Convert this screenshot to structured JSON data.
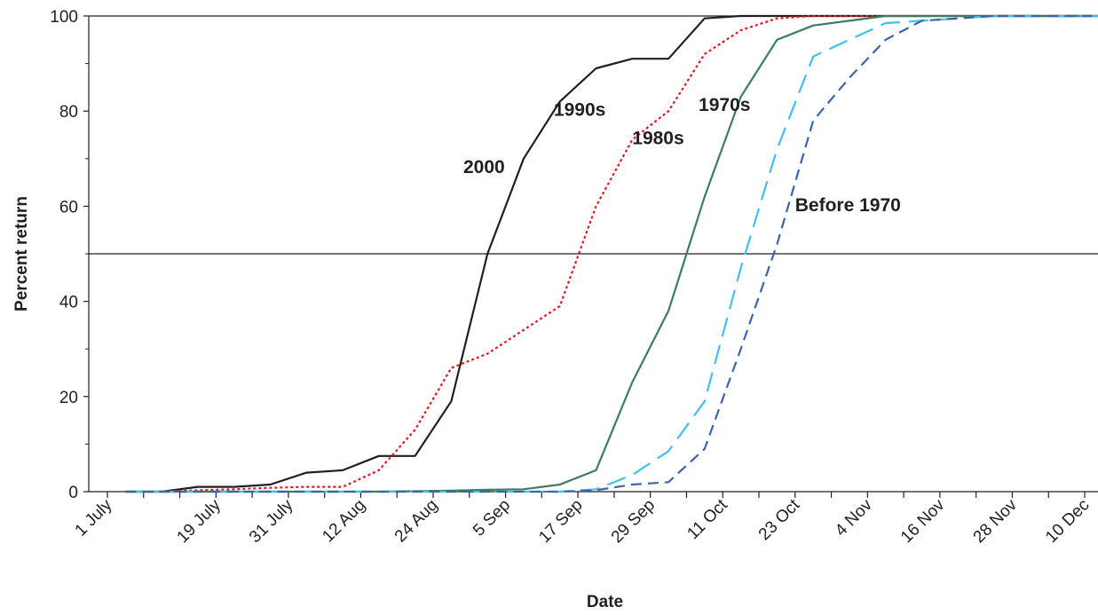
{
  "chart_data": {
    "type": "line",
    "xlabel": "Date",
    "ylabel": "Percent return",
    "ylim": [
      0,
      100
    ],
    "yticks": [
      0,
      20,
      40,
      60,
      80,
      100
    ],
    "x_tick_labels": [
      "1 July",
      "19 July",
      "31 July",
      "12 Aug",
      "24 Aug",
      "5 Sep",
      "17 Sep",
      "29 Sep",
      "11 Oct",
      "23 Oct",
      "4 Nov",
      "16 Nov",
      "28 Nov",
      "10 Dec"
    ],
    "x_tick_dates": [
      "1 July",
      "7 July",
      "13 July",
      "19 July",
      "25 July",
      "31 July",
      "6 Aug",
      "12 Aug",
      "18 Aug",
      "24 Aug",
      "30 Aug",
      "5 Sep",
      "11 Sep",
      "17 Sep",
      "23 Sep",
      "29 Sep",
      "5 Oct",
      "11 Oct",
      "17 Oct",
      "23 Oct",
      "29 Oct",
      "4 Nov",
      "10 Nov",
      "16 Nov",
      "22 Nov",
      "28 Nov",
      "4 Dec",
      "10 Dec"
    ],
    "reference_lines": [
      50,
      100
    ],
    "grid": false,
    "series": [
      {
        "name": "2000",
        "color": "#231f20",
        "dash": "solid",
        "label_at": [
          "29 Aug",
          67
        ],
        "x": [
          "4 July",
          "10 July",
          "16 July",
          "22 July",
          "28 July",
          "3 Aug",
          "9 Aug",
          "15 Aug",
          "21 Aug",
          "27 Aug",
          "2 Sep",
          "5 Sep",
          "8 Sep",
          "14 Sep",
          "20 Sep",
          "26 Sep",
          "2 Oct",
          "8 Oct",
          "14 Oct",
          "20 Oct",
          "26 Oct",
          "1 Nov",
          "7 Nov",
          "13 Nov",
          "19 Nov",
          "25 Nov",
          "1 Dec",
          "7 Dec",
          "13 Dec"
        ],
        "values": [
          0,
          0,
          1,
          1,
          1.5,
          4,
          4.5,
          7.5,
          7.5,
          19,
          50,
          60,
          70,
          82,
          89,
          91,
          91,
          99.5,
          100,
          100,
          100,
          100,
          100,
          100,
          100,
          100,
          100,
          100,
          100
        ]
      },
      {
        "name": "1990s",
        "color": "#e8171f",
        "dash": "dotted",
        "label_at": [
          "13 Sep",
          79
        ],
        "x": [
          "4 July",
          "10 July",
          "16 July",
          "22 July",
          "28 July",
          "3 Aug",
          "9 Aug",
          "15 Aug",
          "21 Aug",
          "27 Aug",
          "2 Sep",
          "8 Sep",
          "14 Sep",
          "20 Sep",
          "26 Sep",
          "2 Oct",
          "8 Oct",
          "14 Oct",
          "20 Oct",
          "26 Oct",
          "1 Nov",
          "7 Nov",
          "13 Nov",
          "19 Nov",
          "25 Nov",
          "1 Dec",
          "7 Dec",
          "13 Dec"
        ],
        "values": [
          0,
          0,
          0.3,
          0.5,
          0.8,
          1,
          1,
          4.5,
          13,
          26,
          29,
          34,
          39,
          60,
          74,
          80,
          92,
          97,
          99.5,
          100,
          100,
          100,
          100,
          100,
          100,
          100,
          100,
          100
        ]
      },
      {
        "name": "1980s",
        "color": "#3d7d5c",
        "dash": "solid",
        "label_at": [
          "26 Sep",
          73
        ],
        "x": [
          "4 July",
          "10 July",
          "16 July",
          "22 July",
          "28 July",
          "3 Aug",
          "9 Aug",
          "15 Aug",
          "21 Aug",
          "27 Aug",
          "2 Sep",
          "8 Sep",
          "14 Sep",
          "20 Sep",
          "26 Sep",
          "2 Oct",
          "8 Oct",
          "14 Oct",
          "20 Oct",
          "26 Oct",
          "1 Nov",
          "7 Nov",
          "13 Nov",
          "19 Nov",
          "25 Nov",
          "1 Dec",
          "7 Dec",
          "13 Dec"
        ],
        "values": [
          0,
          0,
          0,
          0,
          0,
          0,
          0,
          0,
          0.1,
          0.2,
          0.4,
          0.5,
          1.5,
          4.5,
          23,
          38,
          62,
          83,
          95,
          98,
          99,
          100,
          100,
          100,
          100,
          100,
          100,
          100
        ]
      },
      {
        "name": "1970s",
        "color": "#3fc1ef",
        "dash": "long-dash",
        "label_at": [
          "7 Oct",
          80
        ],
        "x": [
          "4 July",
          "10 July",
          "16 July",
          "22 July",
          "28 July",
          "3 Aug",
          "9 Aug",
          "15 Aug",
          "21 Aug",
          "27 Aug",
          "2 Sep",
          "8 Sep",
          "14 Sep",
          "20 Sep",
          "26 Sep",
          "2 Oct",
          "8 Oct",
          "14 Oct",
          "20 Oct",
          "26 Oct",
          "1 Nov",
          "7 Nov",
          "13 Nov",
          "19 Nov",
          "25 Nov",
          "1 Dec",
          "7 Dec",
          "13 Dec"
        ],
        "values": [
          0,
          0,
          0,
          0,
          0,
          0,
          0,
          0,
          0,
          0,
          0,
          0,
          0,
          0.5,
          3.5,
          8.5,
          19,
          47,
          72,
          91.5,
          95,
          98.5,
          99,
          99.5,
          100,
          100,
          100,
          100
        ]
      },
      {
        "name": "Before 1970",
        "color": "#3b63ae",
        "dash": "dashed",
        "label_at": [
          "23 Oct",
          59
        ],
        "x": [
          "4 July",
          "10 July",
          "16 July",
          "22 July",
          "28 July",
          "3 Aug",
          "9 Aug",
          "15 Aug",
          "21 Aug",
          "27 Aug",
          "2 Sep",
          "8 Sep",
          "14 Sep",
          "20 Sep",
          "26 Sep",
          "2 Oct",
          "8 Oct",
          "14 Oct",
          "20 Oct",
          "26 Oct",
          "1 Nov",
          "7 Nov",
          "13 Nov",
          "19 Nov",
          "25 Nov",
          "1 Dec",
          "7 Dec",
          "13 Dec"
        ],
        "values": [
          0,
          0,
          0,
          0,
          0,
          0,
          0,
          0,
          0,
          0,
          0,
          0,
          0,
          0.3,
          1.5,
          2,
          9,
          30,
          52,
          78,
          87,
          95,
          99,
          99.5,
          100,
          100,
          100,
          100
        ]
      }
    ]
  }
}
